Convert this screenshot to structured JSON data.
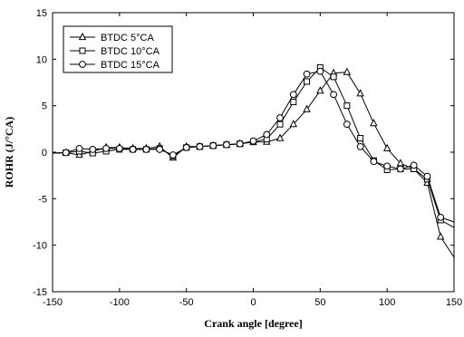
{
  "chart_data": {
    "type": "line",
    "title": "",
    "xlabel": "Crank angle [degree]",
    "ylabel": "ROHR (J/°CA)",
    "xlim": [
      -150,
      150
    ],
    "ylim": [
      -15,
      15
    ],
    "xticks": [
      -150,
      -100,
      -50,
      0,
      50,
      100,
      150
    ],
    "yticks": [
      -15,
      -10,
      -5,
      0,
      5,
      10,
      15
    ],
    "xtick_labels": [
      "-150",
      "-100",
      "-50",
      "0",
      "50",
      "100",
      "150"
    ],
    "ytick_labels": [
      "-15",
      "-10",
      "-5",
      "0",
      "5",
      "10",
      "15"
    ],
    "grid": false,
    "legend_position": "top-left",
    "series": [
      {
        "name": "BTDC 5°CA",
        "marker": "triangle",
        "x": [
          -150,
          -140,
          -130,
          -120,
          -110,
          -100,
          -90,
          -80,
          -70,
          -60,
          -50,
          -40,
          -30,
          -20,
          -10,
          0,
          10,
          20,
          30,
          40,
          50,
          60,
          70,
          80,
          90,
          100,
          110,
          120,
          130,
          140,
          150
        ],
        "y": [
          -0.1,
          -0.05,
          -0.3,
          0.1,
          0.5,
          0.5,
          0.4,
          0.4,
          0.6,
          -0.6,
          0.6,
          0.6,
          0.7,
          0.8,
          0.9,
          1.1,
          1.1,
          1.5,
          3.0,
          4.6,
          6.6,
          8.5,
          8.6,
          6.3,
          3.1,
          0.4,
          -1.2,
          -1.8,
          -3.3,
          -9.1,
          -11.3
        ]
      },
      {
        "name": "BTDC 10°CA",
        "marker": "square",
        "x": [
          -150,
          -140,
          -130,
          -120,
          -110,
          -100,
          -90,
          -80,
          -70,
          -60,
          -50,
          -40,
          -30,
          -20,
          -10,
          0,
          10,
          20,
          30,
          40,
          50,
          60,
          70,
          80,
          90,
          100,
          110,
          120,
          130,
          140,
          150
        ],
        "y": [
          -0.1,
          -0.05,
          0.1,
          -0.1,
          0.1,
          0.3,
          0.3,
          0.3,
          0.4,
          -0.4,
          0.5,
          0.6,
          0.7,
          0.8,
          0.9,
          1.1,
          1.4,
          3.0,
          5.4,
          7.6,
          9.1,
          8.1,
          5.0,
          1.5,
          -0.9,
          -1.9,
          -1.8,
          -1.8,
          -2.9,
          -7.3,
          -8.1
        ]
      },
      {
        "name": "BTDC 15°CA",
        "marker": "circle",
        "x": [
          -150,
          -140,
          -130,
          -120,
          -110,
          -100,
          -90,
          -80,
          -70,
          -60,
          -50,
          -40,
          -30,
          -20,
          -10,
          0,
          10,
          20,
          30,
          40,
          50,
          60,
          70,
          80,
          90,
          100,
          110,
          120,
          130,
          140,
          150
        ],
        "y": [
          -0.1,
          -0.05,
          0.4,
          0.3,
          0.4,
          0.4,
          0.3,
          0.3,
          0.3,
          -0.3,
          0.5,
          0.6,
          0.7,
          0.8,
          0.9,
          1.2,
          1.9,
          3.7,
          6.2,
          8.4,
          8.7,
          6.2,
          3.0,
          0.6,
          -1.0,
          -1.5,
          -1.8,
          -1.4,
          -2.6,
          -7.0,
          -7.5
        ]
      }
    ]
  }
}
